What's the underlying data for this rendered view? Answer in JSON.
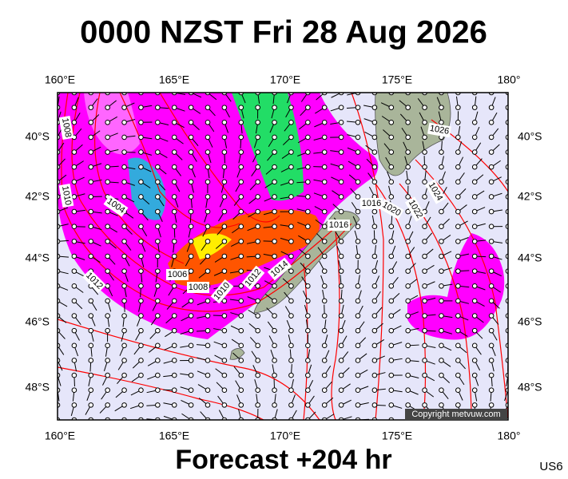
{
  "header": {
    "title": "0000 NZST Fri 28 Aug 2026"
  },
  "map": {
    "lon_labels": [
      "160°E",
      "165°E",
      "170°E",
      "175°E",
      "180°"
    ],
    "lat_labels": [
      "40°S",
      "42°S",
      "44°S",
      "46°S",
      "48°S"
    ],
    "isobar_labels": [
      "1008",
      "1010",
      "1004",
      "1012",
      "1006",
      "1008",
      "1010",
      "1012",
      "1014",
      "1016",
      "1016",
      "1020",
      "1022",
      "1024",
      "1026"
    ],
    "copyright": "Copyright metvuw.com"
  },
  "footer": {
    "text": "Forecast +204 hr",
    "code": "US6"
  }
}
